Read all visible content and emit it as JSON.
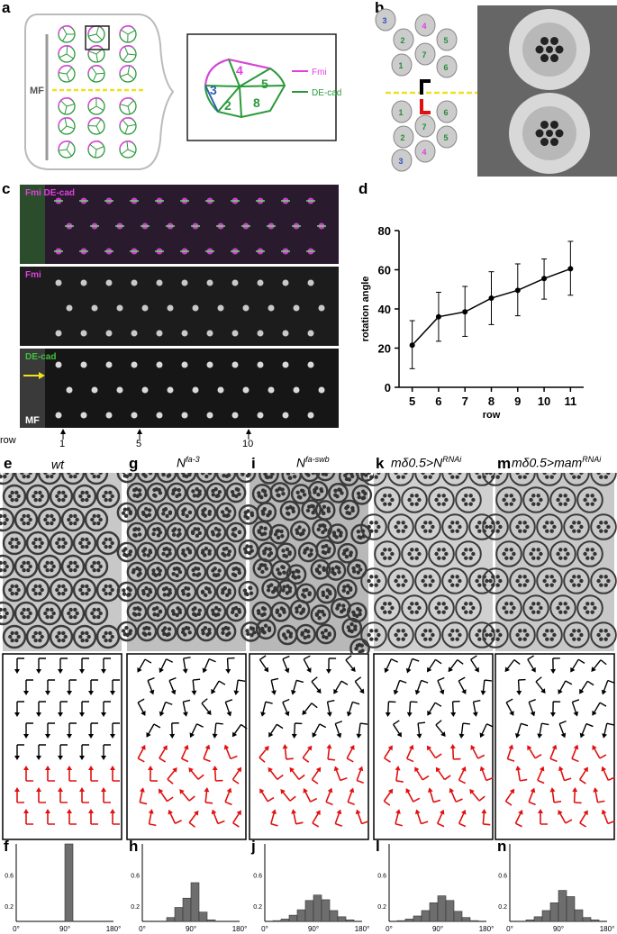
{
  "panel_letters": {
    "a": "a",
    "b": "b",
    "c": "c",
    "d": "d",
    "e": "e",
    "g": "g",
    "i": "i",
    "k": "k",
    "m": "m",
    "f": "f",
    "h": "h",
    "j": "j",
    "l": "l",
    "n": "n"
  },
  "panel_a": {
    "mf_label": "MF",
    "legend": [
      {
        "label": "Fmi",
        "color": "#e040e0"
      },
      {
        "label": "DE-cad",
        "color": "#2a9a3a"
      }
    ],
    "cell_numbers": [
      "4",
      "3",
      "5",
      "2",
      "8"
    ]
  },
  "panel_b": {
    "upper_cells": [
      "3",
      "4",
      "2",
      "5",
      "7",
      "1",
      "6"
    ],
    "lower_cells": [
      "1",
      "6",
      "7",
      "2",
      "5",
      "3",
      "4"
    ]
  },
  "panel_c": {
    "strip_labels": [
      "Fmi DE-cad",
      "Fmi",
      "DE-cad"
    ],
    "mf_label": "MF",
    "row_word": "row",
    "row_marks": [
      "1",
      "5",
      "10"
    ]
  },
  "genotypes": [
    {
      "base": "wt",
      "sup": ""
    },
    {
      "base": "N",
      "sup": "fa-3"
    },
    {
      "base": "N",
      "sup": "fa-swb"
    },
    {
      "base": "mδ0.5>N",
      "sup": "RNAi"
    },
    {
      "base": "mδ0.5>mam",
      "sup": "RNAi"
    }
  ],
  "chart_data": [
    {
      "type": "line",
      "xlabel": "row",
      "ylabel": "rotation angle",
      "x": [
        5,
        6,
        7,
        8,
        9,
        10,
        11
      ],
      "y": [
        21.5,
        36,
        38.5,
        45.5,
        49.5,
        55.5,
        60.5
      ],
      "err_low": [
        9.5,
        23.5,
        26,
        32,
        36.5,
        45,
        47
      ],
      "err_high": [
        34,
        48.5,
        51.5,
        59,
        63,
        65.5,
        74.5
      ],
      "ylim": [
        0,
        80
      ],
      "yticks": [
        0,
        20,
        40,
        60,
        80
      ],
      "xticks": [
        5,
        6,
        7,
        8,
        9,
        10,
        11
      ],
      "grid": false
    },
    {
      "type": "bar",
      "categories": [
        "0°",
        "90°",
        "180°"
      ],
      "bins": [
        0,
        15,
        30,
        45,
        60,
        75,
        90,
        105,
        120,
        135,
        150,
        165
      ],
      "values": [
        0,
        0,
        0,
        0,
        0,
        0,
        1.0,
        0,
        0,
        0,
        0,
        0
      ],
      "ylim": [
        0,
        1
      ],
      "yticks": [
        "0.2",
        "0.6"
      ]
    },
    {
      "type": "bar",
      "categories": [
        "0°",
        "90°",
        "180°"
      ],
      "bins": [
        45,
        60,
        75,
        90,
        105,
        120
      ],
      "values": [
        0.05,
        0.18,
        0.3,
        0.5,
        0.12,
        0.02
      ],
      "ylim": [
        0,
        1
      ],
      "yticks": [
        "0.2",
        "0.6"
      ]
    },
    {
      "type": "bar",
      "categories": [
        "0°",
        "90°",
        "180°"
      ],
      "bins": [
        15,
        30,
        45,
        60,
        75,
        90,
        105,
        120,
        135,
        150
      ],
      "values": [
        0.01,
        0.03,
        0.08,
        0.15,
        0.27,
        0.34,
        0.28,
        0.14,
        0.06,
        0.02
      ],
      "ylim": [
        0,
        1
      ],
      "yticks": [
        "0.2",
        "0.6"
      ]
    },
    {
      "type": "bar",
      "categories": [
        "0°",
        "90°",
        "180°"
      ],
      "bins": [
        15,
        30,
        45,
        60,
        75,
        90,
        105,
        120,
        135,
        150
      ],
      "values": [
        0.01,
        0.03,
        0.07,
        0.14,
        0.24,
        0.33,
        0.27,
        0.13,
        0.05,
        0.01
      ],
      "ylim": [
        0,
        1
      ],
      "yticks": [
        "0.2",
        "0.6"
      ]
    },
    {
      "type": "bar",
      "categories": [
        "0°",
        "90°",
        "180°"
      ],
      "bins": [
        30,
        45,
        60,
        75,
        90,
        105,
        120,
        135,
        150
      ],
      "values": [
        0.02,
        0.06,
        0.14,
        0.24,
        0.4,
        0.32,
        0.15,
        0.05,
        0.02
      ],
      "ylim": [
        0,
        1
      ],
      "yticks": [
        "0.2",
        "0.6"
      ]
    }
  ]
}
